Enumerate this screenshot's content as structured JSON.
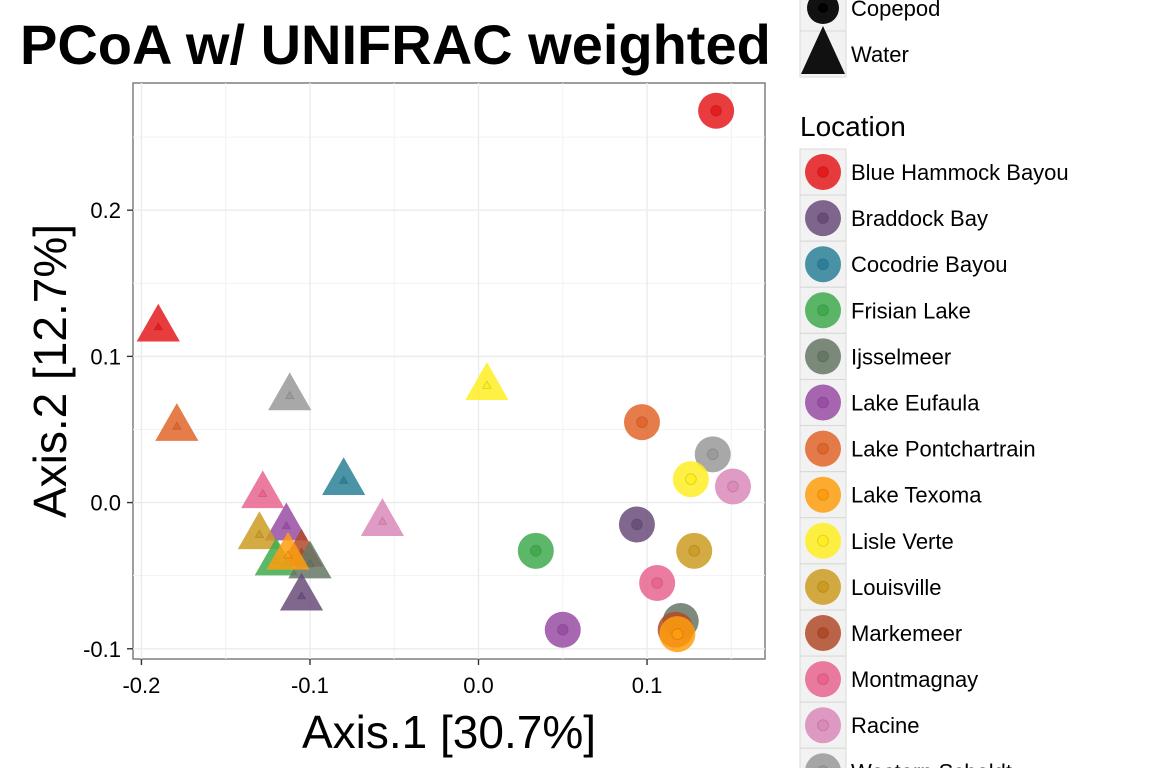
{
  "chart_data": {
    "type": "scatter",
    "title": "PCoA w/ UNIFRAC weighted",
    "xlabel": "Axis.1   [30.7%]",
    "ylabel": "Axis.2   [12.7%]",
    "xlim": [
      -0.205,
      0.17
    ],
    "ylim": [
      -0.107,
      0.287
    ],
    "xticks": [
      -0.2,
      -0.1,
      0.0,
      0.1
    ],
    "xtick_labels": [
      "-0.2",
      "-0.1",
      "0.0",
      "0.1"
    ],
    "yticks": [
      -0.1,
      0.0,
      0.1,
      0.2
    ],
    "ytick_labels": [
      "-0.1",
      "0.0",
      "0.1",
      "0.2"
    ],
    "grid": true,
    "legend_position": "right",
    "shape_legend": {
      "entries": [
        {
          "label": "Copepod",
          "shape": "circle"
        },
        {
          "label": "Water",
          "shape": "triangle"
        }
      ]
    },
    "color_legend": {
      "title": "Location",
      "entries": [
        {
          "label": "Blue Hammock Bayou",
          "color": "#e41a1c"
        },
        {
          "label": "Braddock Bay",
          "color": "#6a4c7a"
        },
        {
          "label": "Cocodrie Bayou",
          "color": "#2b8098"
        },
        {
          "label": "Frisian Lake",
          "color": "#3faa4e"
        },
        {
          "label": "Ijsselmeer",
          "color": "#667766"
        },
        {
          "label": "Lake Eufaula",
          "color": "#984ea3"
        },
        {
          "label": "Lake Pontchartrain",
          "color": "#e0652a"
        },
        {
          "label": "Lake Texoma",
          "color": "#ff9d0e"
        },
        {
          "label": "Lisle Verte",
          "color": "#ffee22"
        },
        {
          "label": "Louisville",
          "color": "#cc9c22"
        },
        {
          "label": "Markemeer",
          "color": "#b04a28"
        },
        {
          "label": "Montmagnay",
          "color": "#e8648e"
        },
        {
          "label": "Racine",
          "color": "#d98ab8"
        },
        {
          "label": "Western Scheldt",
          "color": "#999999"
        }
      ]
    },
    "points": [
      {
        "x": 0.141,
        "y": 0.268,
        "location": "Blue Hammock Bayou",
        "type": "Copepod"
      },
      {
        "x": 0.097,
        "y": 0.055,
        "location": "Lake Pontchartrain",
        "type": "Copepod"
      },
      {
        "x": 0.139,
        "y": 0.033,
        "location": "Western Scheldt",
        "type": "Copepod"
      },
      {
        "x": 0.151,
        "y": 0.011,
        "location": "Racine",
        "type": "Copepod"
      },
      {
        "x": 0.126,
        "y": 0.016,
        "location": "Lisle Verte",
        "type": "Copepod"
      },
      {
        "x": 0.094,
        "y": -0.015,
        "location": "Braddock Bay",
        "type": "Copepod"
      },
      {
        "x": 0.128,
        "y": -0.033,
        "location": "Louisville",
        "type": "Copepod"
      },
      {
        "x": 0.034,
        "y": -0.033,
        "location": "Frisian Lake",
        "type": "Copepod"
      },
      {
        "x": 0.106,
        "y": -0.055,
        "location": "Montmagnay",
        "type": "Copepod"
      },
      {
        "x": 0.05,
        "y": -0.087,
        "location": "Lake Eufaula",
        "type": "Copepod"
      },
      {
        "x": 0.12,
        "y": -0.081,
        "location": "Ijsselmeer",
        "type": "Copepod"
      },
      {
        "x": 0.117,
        "y": -0.087,
        "location": "Markemeer",
        "type": "Copepod"
      },
      {
        "x": 0.118,
        "y": -0.09,
        "location": "Lake Texoma",
        "type": "Copepod"
      },
      {
        "x": -0.19,
        "y": 0.12,
        "location": "Blue Hammock Bayou",
        "type": "Water"
      },
      {
        "x": -0.179,
        "y": 0.052,
        "location": "Lake Pontchartrain",
        "type": "Water"
      },
      {
        "x": -0.112,
        "y": 0.073,
        "location": "Western Scheldt",
        "type": "Water"
      },
      {
        "x": 0.005,
        "y": 0.08,
        "location": "Lisle Verte",
        "type": "Water"
      },
      {
        "x": -0.08,
        "y": 0.015,
        "location": "Cocodrie Bayou",
        "type": "Water"
      },
      {
        "x": -0.128,
        "y": 0.006,
        "location": "Montmagnay",
        "type": "Water"
      },
      {
        "x": -0.057,
        "y": -0.013,
        "location": "Racine",
        "type": "Water"
      },
      {
        "x": -0.114,
        "y": -0.016,
        "location": "Lake Eufaula",
        "type": "Water"
      },
      {
        "x": -0.13,
        "y": -0.022,
        "location": "Louisville",
        "type": "Water"
      },
      {
        "x": -0.105,
        "y": -0.034,
        "location": "Markemeer",
        "type": "Water"
      },
      {
        "x": -0.12,
        "y": -0.04,
        "location": "Frisian Lake",
        "type": "Water"
      },
      {
        "x": -0.1,
        "y": -0.042,
        "location": "Ijsselmeer",
        "type": "Water"
      },
      {
        "x": -0.105,
        "y": -0.064,
        "location": "Braddock Bay",
        "type": "Water"
      },
      {
        "x": -0.113,
        "y": -0.036,
        "location": "Lake Texoma",
        "type": "Water"
      }
    ]
  }
}
